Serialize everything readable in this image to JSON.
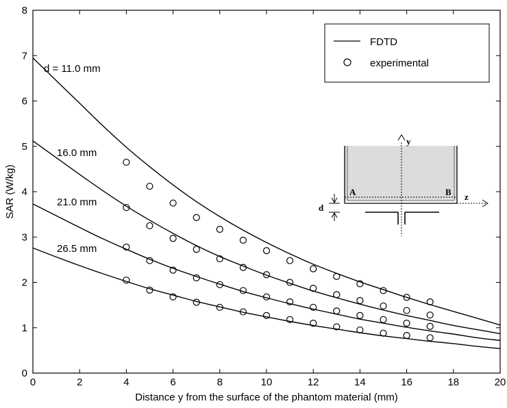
{
  "chart_data": {
    "type": "line",
    "xlabel": "Distance y from the surface of the phantom material (mm)",
    "ylabel": "SAR (W/kg)",
    "xlim": [
      0,
      20
    ],
    "ylim": [
      0,
      8
    ],
    "x_ticks": [
      "0",
      "2",
      "4",
      "6",
      "8",
      "10",
      "12",
      "14",
      "16",
      "18",
      "20"
    ],
    "y_ticks": [
      "0",
      "1",
      "2",
      "3",
      "4",
      "5",
      "6",
      "7",
      "8"
    ],
    "grid": false,
    "legend": {
      "position": "top-right",
      "entries": [
        {
          "label": "FDTD",
          "marker": "line"
        },
        {
          "label": "experimental",
          "marker": "circle"
        }
      ]
    },
    "series": [
      {
        "name": "d = 11.0 mm",
        "fdtd": {
          "x": [
            0,
            1,
            2,
            3,
            4,
            5,
            6,
            7,
            8,
            9,
            10,
            11,
            12,
            13,
            14,
            15,
            16,
            17,
            18,
            19,
            20
          ],
          "y": [
            6.95,
            6.45,
            5.95,
            5.45,
            4.98,
            4.55,
            4.15,
            3.78,
            3.45,
            3.15,
            2.88,
            2.63,
            2.4,
            2.2,
            2.01,
            1.84,
            1.67,
            1.51,
            1.36,
            1.21,
            1.06
          ]
        },
        "experimental": {
          "x": [
            4,
            5,
            6,
            7,
            8,
            9,
            10,
            11,
            12,
            13,
            14,
            15,
            16,
            17
          ],
          "y": [
            4.65,
            4.12,
            3.75,
            3.43,
            3.17,
            2.93,
            2.7,
            2.48,
            2.3,
            2.13,
            1.97,
            1.82,
            1.67,
            1.57
          ]
        }
      },
      {
        "name": "16.0 mm",
        "fdtd": {
          "x": [
            0,
            1,
            2,
            3,
            4,
            5,
            6,
            7,
            8,
            9,
            10,
            11,
            12,
            13,
            14,
            15,
            16,
            17,
            18,
            19,
            20
          ],
          "y": [
            5.12,
            4.75,
            4.38,
            4.02,
            3.68,
            3.37,
            3.08,
            2.81,
            2.57,
            2.36,
            2.16,
            1.98,
            1.81,
            1.66,
            1.52,
            1.39,
            1.27,
            1.16,
            1.05,
            0.96,
            0.87
          ]
        },
        "experimental": {
          "x": [
            4,
            5,
            6,
            7,
            8,
            9,
            10,
            11,
            12,
            13,
            14,
            15,
            16,
            17
          ],
          "y": [
            3.65,
            3.25,
            2.97,
            2.73,
            2.52,
            2.33,
            2.17,
            2.0,
            1.87,
            1.73,
            1.6,
            1.48,
            1.38,
            1.28
          ]
        }
      },
      {
        "name": "21.0 mm",
        "fdtd": {
          "x": [
            0,
            1,
            2,
            3,
            4,
            5,
            6,
            7,
            8,
            9,
            10,
            11,
            12,
            13,
            14,
            15,
            16,
            17,
            18,
            19,
            20
          ],
          "y": [
            3.73,
            3.47,
            3.21,
            2.96,
            2.73,
            2.51,
            2.31,
            2.13,
            1.96,
            1.8,
            1.66,
            1.53,
            1.41,
            1.3,
            1.19,
            1.1,
            1.01,
            0.93,
            0.86,
            0.78,
            0.72
          ]
        },
        "experimental": {
          "x": [
            4,
            5,
            6,
            7,
            8,
            9,
            10,
            11,
            12,
            13,
            14,
            15,
            16,
            17
          ],
          "y": [
            2.78,
            2.48,
            2.27,
            2.1,
            1.95,
            1.82,
            1.68,
            1.57,
            1.45,
            1.37,
            1.27,
            1.18,
            1.1,
            1.03
          ]
        }
      },
      {
        "name": "26.5 mm",
        "fdtd": {
          "x": [
            0,
            1,
            2,
            3,
            4,
            5,
            6,
            7,
            8,
            9,
            10,
            11,
            12,
            13,
            14,
            15,
            16,
            17,
            18,
            19,
            20
          ],
          "y": [
            2.76,
            2.56,
            2.37,
            2.19,
            2.02,
            1.86,
            1.72,
            1.58,
            1.46,
            1.34,
            1.24,
            1.14,
            1.05,
            0.97,
            0.89,
            0.82,
            0.76,
            0.7,
            0.65,
            0.59,
            0.54
          ]
        },
        "experimental": {
          "x": [
            4,
            5,
            6,
            7,
            8,
            9,
            10,
            11,
            12,
            13,
            14,
            15,
            16,
            17
          ],
          "y": [
            2.05,
            1.83,
            1.68,
            1.56,
            1.45,
            1.35,
            1.27,
            1.18,
            1.1,
            1.02,
            0.95,
            0.88,
            0.83,
            0.78
          ]
        }
      }
    ],
    "annotations": {
      "curve_labels": [
        "d = 11.0 mm",
        "16.0 mm",
        "21.0 mm",
        "26.5 mm"
      ],
      "inset": {
        "y_axis": "y",
        "z_axis": "z",
        "point_a": "A",
        "point_b": "B",
        "distance": "d"
      }
    }
  }
}
